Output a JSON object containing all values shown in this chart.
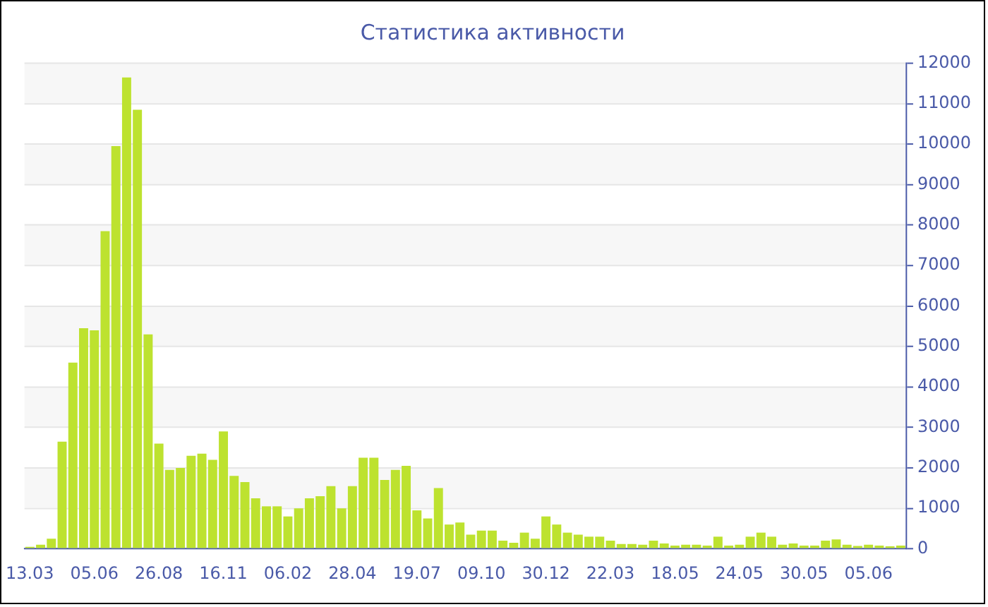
{
  "chart_data": {
    "type": "bar",
    "title": "Статистика активности",
    "categories": [
      "13.03",
      null,
      null,
      null,
      null,
      null,
      "05.06",
      null,
      null,
      null,
      null,
      null,
      "26.08",
      null,
      null,
      null,
      null,
      null,
      "16.11",
      null,
      null,
      null,
      null,
      null,
      "06.02",
      null,
      null,
      null,
      null,
      null,
      "28.04",
      null,
      null,
      null,
      null,
      null,
      "19.07",
      null,
      null,
      null,
      null,
      null,
      "09.10",
      null,
      null,
      null,
      null,
      null,
      "30.12",
      null,
      null,
      null,
      null,
      null,
      "22.03",
      null,
      null,
      null,
      null,
      null,
      "18.05",
      null,
      null,
      null,
      null,
      null,
      "24.05",
      null,
      null,
      null,
      null,
      null,
      "30.05",
      null,
      null,
      null,
      null,
      null,
      "05.06",
      null,
      null,
      null
    ],
    "values": [
      50,
      100,
      250,
      2650,
      4600,
      5450,
      5400,
      7850,
      9950,
      11650,
      10850,
      5300,
      2600,
      1950,
      2000,
      2300,
      2350,
      2200,
      2900,
      1800,
      1650,
      1250,
      1050,
      1050,
      800,
      1000,
      1250,
      1300,
      1550,
      1000,
      1550,
      2250,
      2250,
      1700,
      1950,
      2050,
      950,
      750,
      1500,
      600,
      650,
      350,
      450,
      450,
      200,
      150,
      400,
      250,
      800,
      600,
      400,
      350,
      300,
      300,
      200,
      120,
      120,
      100,
      200,
      130,
      80,
      100,
      100,
      80,
      300,
      80,
      100,
      300,
      400,
      300,
      100,
      130,
      80,
      80,
      200,
      230,
      100,
      70,
      100,
      80,
      60,
      80
    ],
    "color": "#bde22f",
    "ylim": [
      0,
      12000
    ],
    "yticks": [
      0,
      1000,
      2000,
      3000,
      4000,
      5000,
      6000,
      7000,
      8000,
      9000,
      10000,
      11000,
      12000
    ],
    "grid": "y"
  }
}
